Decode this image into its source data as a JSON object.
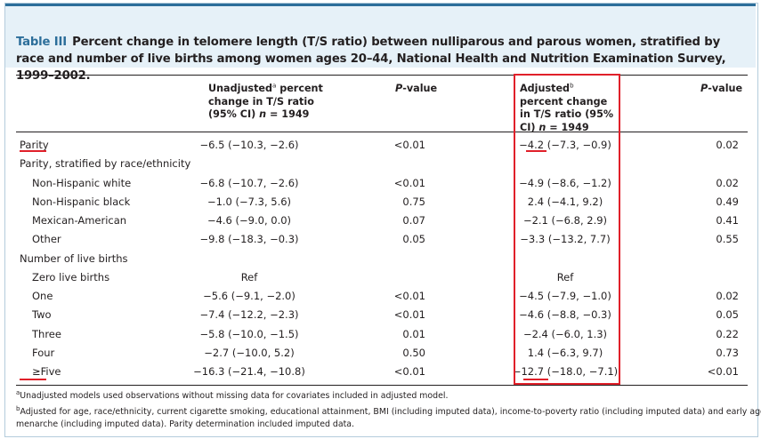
{
  "caption": {
    "label": "Table III",
    "text": "Percent change in telomere length (T/S ratio) between nulliparous and parous women, stratified by race and number of live births among women ages 20–44, National Health and Nutrition Examination Survey, 1999–2002."
  },
  "headers": {
    "unadjusted": {
      "pre": "Unadjusted",
      "sup": "a",
      "post": " percent change in T/S ratio (95% CI) ",
      "n_label": "n",
      "n_value": " = 1949"
    },
    "pvalue1": {
      "italic": "P",
      "rest": "-value"
    },
    "adjusted": {
      "pre": "Adjusted",
      "sup": "b",
      "post": " percent change in T/S ratio (95% CI) ",
      "n_label": "n",
      "n_value": " = 1949"
    },
    "pvalue2": {
      "italic": "P",
      "rest": "-value"
    }
  },
  "rows": [
    {
      "label": "Parity",
      "indent": false,
      "unadj": "−6.5 (−10.3, −2.6)",
      "p1": "<0.01",
      "adj": "−4.2 (−7.3, −0.9)",
      "p2": "0.02"
    },
    {
      "label": "Parity, stratified by race/ethnicity",
      "indent": false,
      "unadj": "",
      "p1": "",
      "adj": "",
      "p2": ""
    },
    {
      "label": "Non-Hispanic white",
      "indent": true,
      "unadj": "−6.8 (−10.7, −2.6)",
      "p1": "<0.01",
      "adj": "−4.9 (−8.6, −1.2)",
      "p2": "0.02"
    },
    {
      "label": "Non-Hispanic black",
      "indent": true,
      "unadj": "−1.0 (−7.3, 5.6)",
      "p1": "0.75",
      "adj": "2.4 (−4.1, 9.2)",
      "p2": "0.49"
    },
    {
      "label": "Mexican-American",
      "indent": true,
      "unadj": "−4.6 (−9.0, 0.0)",
      "p1": "0.07",
      "adj": "−2.1 (−6.8, 2.9)",
      "p2": "0.41"
    },
    {
      "label": "Other",
      "indent": true,
      "unadj": "−9.8 (−18.3, −0.3)",
      "p1": "0.05",
      "adj": "−3.3 (−13.2, 7.7)",
      "p2": "0.55"
    },
    {
      "label": "Number of live births",
      "indent": false,
      "unadj": "",
      "p1": "",
      "adj": "",
      "p2": ""
    },
    {
      "label": "Zero live births",
      "indent": true,
      "unadj": "Ref",
      "p1": "",
      "adj": "Ref",
      "p2": ""
    },
    {
      "label": "One",
      "indent": true,
      "unadj": "−5.6 (−9.1, −2.0)",
      "p1": "<0.01",
      "adj": "−4.5 (−7.9, −1.0)",
      "p2": "0.02"
    },
    {
      "label": "Two",
      "indent": true,
      "unadj": "−7.4 (−12.2, −2.3)",
      "p1": "<0.01",
      "adj": "−4.6 (−8.8, −0.3)",
      "p2": "0.05"
    },
    {
      "label": "Three",
      "indent": true,
      "unadj": "−5.8 (−10.0, −1.5)",
      "p1": "0.01",
      "adj": "−2.4 (−6.0, 1.3)",
      "p2": "0.22"
    },
    {
      "label": "Four",
      "indent": true,
      "unadj": "−2.7 (−10.0, 5.2)",
      "p1": "0.50",
      "adj": "1.4 (−6.3, 9.7)",
      "p2": "0.73"
    },
    {
      "label": "≥Five",
      "indent": true,
      "unadj": "−16.3 (−21.4, −10.8)",
      "p1": "<0.01",
      "adj": "−12.7 (−18.0, −7.1)",
      "p2": "<0.01"
    }
  ],
  "footnotes": [
    {
      "sup": "a",
      "text": "Unadjusted models used observations without missing data for covariates included in adjusted model."
    },
    {
      "sup": "b",
      "text": "Adjusted for age, race/ethnicity, current cigarette smoking, educational attainment, BMI (including imputed data), income-to-poverty ratio (including imputed data) and early age at"
    },
    {
      "sup": "",
      "text": "menarche (including imputed data). Parity determination included imputed data."
    }
  ],
  "colors": {
    "accent_blue": "#2c6e9a",
    "band_blue": "#e6f1f8",
    "highlight_red": "#e0202a"
  }
}
